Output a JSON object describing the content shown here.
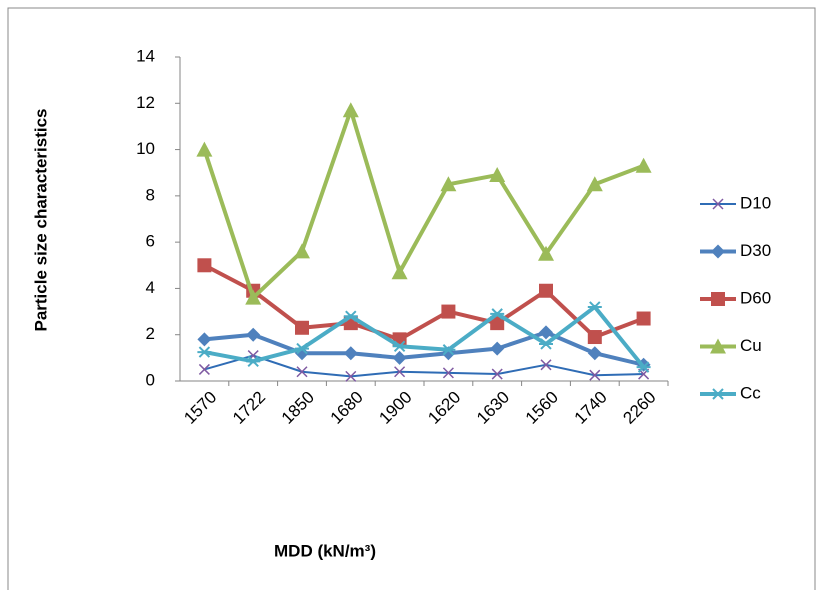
{
  "chart_data": {
    "type": "line",
    "y_label": "Particle size characteristics",
    "x_label": "MDD (kN/m³)",
    "categories": [
      "1570",
      "1722",
      "1850",
      "1680",
      "1900",
      "1620",
      "1630",
      "1560",
      "1740",
      "2260"
    ],
    "ylim": [
      0,
      14
    ],
    "yticks": [
      0,
      2,
      4,
      6,
      8,
      10,
      12,
      14
    ],
    "legend": "right",
    "series": [
      {
        "name": "D10",
        "color": "#2f6cb5",
        "marker": "x",
        "values": [
          0.5,
          1.1,
          0.4,
          0.2,
          0.4,
          0.35,
          0.3,
          0.7,
          0.25,
          0.3
        ]
      },
      {
        "name": "D30",
        "color": "#4f81bd",
        "marker": "diamond",
        "values": [
          1.8,
          2.0,
          1.2,
          1.2,
          1.0,
          1.2,
          1.4,
          2.1,
          1.2,
          0.7
        ]
      },
      {
        "name": "D60",
        "color": "#c0504d",
        "marker": "square",
        "values": [
          5.0,
          3.9,
          2.3,
          2.5,
          1.8,
          3.0,
          2.5,
          3.9,
          1.9,
          2.7
        ]
      },
      {
        "name": "Cu",
        "color": "#9bbb59",
        "marker": "triangle",
        "values": [
          10.0,
          3.6,
          5.6,
          11.7,
          4.7,
          8.5,
          8.9,
          5.5,
          8.5,
          9.3
        ]
      },
      {
        "name": "Cc",
        "color": "#4bacc6",
        "marker": "star",
        "values": [
          1.25,
          0.85,
          1.4,
          2.8,
          1.5,
          1.35,
          2.9,
          1.6,
          3.2,
          0.6
        ]
      }
    ]
  }
}
